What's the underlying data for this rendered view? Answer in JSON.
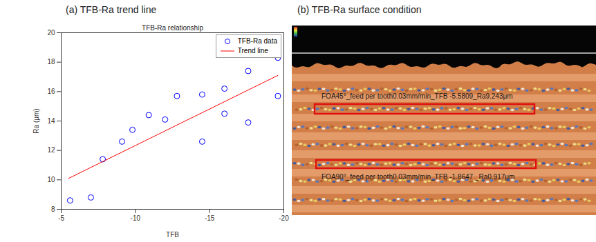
{
  "chart_data": {
    "type": "scatter",
    "heading": "(a) TFB-Ra trend line",
    "title": "TFB-Ra relationship",
    "x_label": "TFB",
    "y_label": "Ra (μm)",
    "xlim": [
      -5,
      -20
    ],
    "xticks": [
      -5,
      -10,
      -15,
      -20
    ],
    "ylim": [
      8,
      20
    ],
    "yticks": [
      8,
      10,
      12,
      14,
      16,
      18,
      20
    ],
    "grid": false,
    "legend": "top-right",
    "series": [
      {
        "name": "TFB-Ra data",
        "type": "scatter",
        "color": "#0000ff",
        "marker": "circle",
        "x": [
          -5.6,
          -7.0,
          -7.8,
          -9.1,
          -9.8,
          -10.9,
          -12.0,
          -12.8,
          -14.5,
          -14.5,
          -16.0,
          -16.0,
          -17.6,
          -17.6,
          -19.6,
          -19.6
        ],
        "values": [
          8.6,
          8.8,
          11.4,
          12.6,
          13.4,
          14.4,
          14.1,
          15.7,
          15.8,
          12.6,
          16.2,
          14.5,
          17.4,
          13.9,
          18.3,
          15.7
        ]
      },
      {
        "name": "Trend line",
        "type": "line",
        "color": "#ff0000",
        "line_style": "solid",
        "x": [
          -5.5,
          -19.6
        ],
        "values": [
          10.1,
          17.1
        ]
      }
    ]
  },
  "surface_panel": {
    "heading": "(b) TFB-Ra surface condition",
    "annotations": [
      "FOA45°_feed per tooth0.03mm/min_TFB -5.5809_Ra9.243μm",
      "FOA90°_feed per tooth0.03mm/min_TFB -1.8647 _Ra0.917μm"
    ]
  }
}
